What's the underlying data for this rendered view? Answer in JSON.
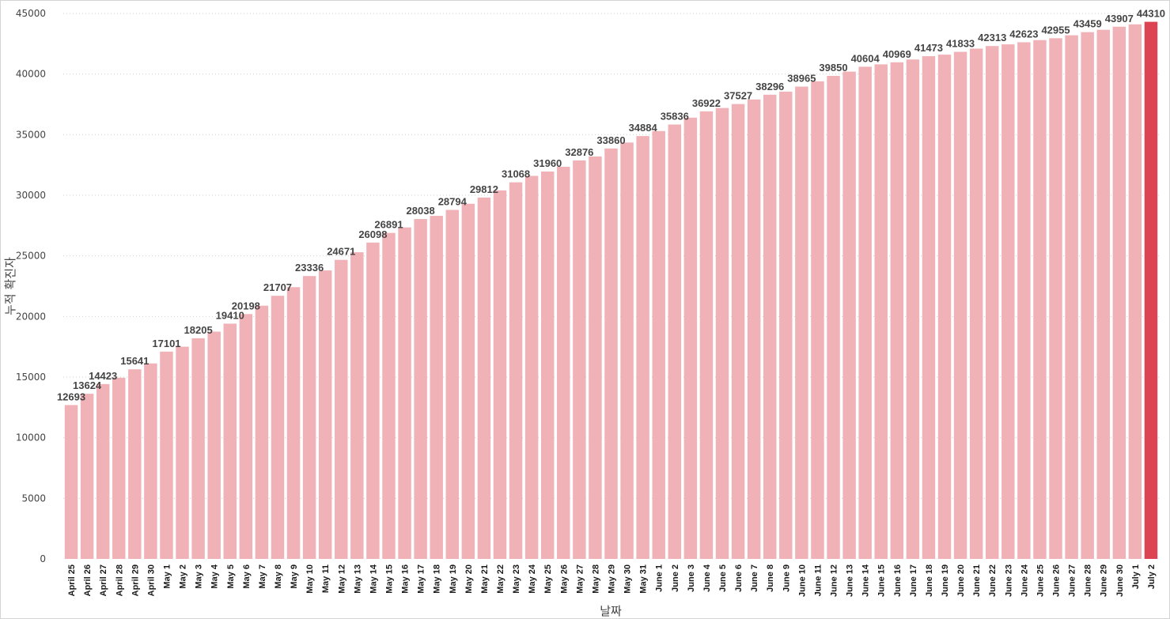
{
  "chart_data": {
    "type": "bar",
    "title": "",
    "xlabel": "날짜",
    "ylabel": "누적 확진자",
    "ylim": [
      0,
      45000
    ],
    "yticks": [
      0,
      5000,
      10000,
      15000,
      20000,
      25000,
      30000,
      35000,
      40000,
      45000
    ],
    "grid": true,
    "colors": {
      "bar": "#f0b2b7",
      "highlight": "#dc4453",
      "grid": "#d0d0d0"
    },
    "highlight_index": 68,
    "categories": [
      "April 25",
      "April 26",
      "April 27",
      "April 28",
      "April 29",
      "April 30",
      "May 1",
      "May 2",
      "May 3",
      "May 4",
      "May 5",
      "May 6",
      "May 7",
      "May 8",
      "May 9",
      "May 10",
      "May 11",
      "May 12",
      "May 13",
      "May 14",
      "May 15",
      "May 16",
      "May 17",
      "May 18",
      "May 19",
      "May 20",
      "May 21",
      "May 22",
      "May 23",
      "May 24",
      "May 25",
      "May 26",
      "May 27",
      "May 28",
      "May 29",
      "May 30",
      "May 31",
      "June 1",
      "June 2",
      "June 3",
      "June 4",
      "June 5",
      "June 6",
      "June 7",
      "June 8",
      "June 9",
      "June 10",
      "June 11",
      "June 12",
      "June 13",
      "June 14",
      "June 15",
      "June 16",
      "June 17",
      "June 18",
      "June 19",
      "June 20",
      "June 21",
      "June 22",
      "June 23",
      "June 24",
      "June 25",
      "June 26",
      "June 27",
      "June 28",
      "June 29",
      "June 30",
      "July 1",
      "July 2"
    ],
    "values": [
      12693,
      13624,
      14423,
      14950,
      15641,
      16130,
      17101,
      17510,
      18205,
      18750,
      19410,
      20198,
      20890,
      21707,
      22420,
      23336,
      23800,
      24671,
      25300,
      26098,
      26891,
      27350,
      28038,
      28300,
      28794,
      29300,
      29812,
      30400,
      31068,
      31600,
      31960,
      32350,
      32876,
      33200,
      33860,
      34350,
      34884,
      35300,
      35836,
      36400,
      36922,
      37200,
      37527,
      37900,
      38296,
      38550,
      38965,
      39400,
      39850,
      40200,
      40604,
      40800,
      40969,
      41200,
      41473,
      41600,
      41833,
      42100,
      42313,
      42450,
      42623,
      42800,
      42955,
      43200,
      43459,
      43650,
      43907,
      44100,
      44310
    ],
    "data_labels": [
      {
        "index": 0,
        "text": "12693"
      },
      {
        "index": 1,
        "text": "13624"
      },
      {
        "index": 2,
        "text": "14423"
      },
      {
        "index": 4,
        "text": "15641"
      },
      {
        "index": 6,
        "text": "17101"
      },
      {
        "index": 8,
        "text": "18205"
      },
      {
        "index": 10,
        "text": "19410"
      },
      {
        "index": 11,
        "text": "20198"
      },
      {
        "index": 13,
        "text": "21707"
      },
      {
        "index": 15,
        "text": "23336"
      },
      {
        "index": 17,
        "text": "24671"
      },
      {
        "index": 19,
        "text": "26098"
      },
      {
        "index": 20,
        "text": "26891"
      },
      {
        "index": 22,
        "text": "28038"
      },
      {
        "index": 24,
        "text": "28794"
      },
      {
        "index": 26,
        "text": "29812"
      },
      {
        "index": 28,
        "text": "31068"
      },
      {
        "index": 30,
        "text": "31960"
      },
      {
        "index": 32,
        "text": "32876"
      },
      {
        "index": 34,
        "text": "33860"
      },
      {
        "index": 36,
        "text": "34884"
      },
      {
        "index": 38,
        "text": "35836"
      },
      {
        "index": 40,
        "text": "36922"
      },
      {
        "index": 42,
        "text": "37527"
      },
      {
        "index": 44,
        "text": "38296"
      },
      {
        "index": 46,
        "text": "38965"
      },
      {
        "index": 48,
        "text": "39850"
      },
      {
        "index": 50,
        "text": "40604"
      },
      {
        "index": 52,
        "text": "40969"
      },
      {
        "index": 54,
        "text": "41473"
      },
      {
        "index": 56,
        "text": "41833"
      },
      {
        "index": 58,
        "text": "42313"
      },
      {
        "index": 60,
        "text": "42623"
      },
      {
        "index": 62,
        "text": "42955"
      },
      {
        "index": 64,
        "text": "43459"
      },
      {
        "index": 66,
        "text": "43907"
      },
      {
        "index": 68,
        "text": "44310"
      }
    ]
  }
}
